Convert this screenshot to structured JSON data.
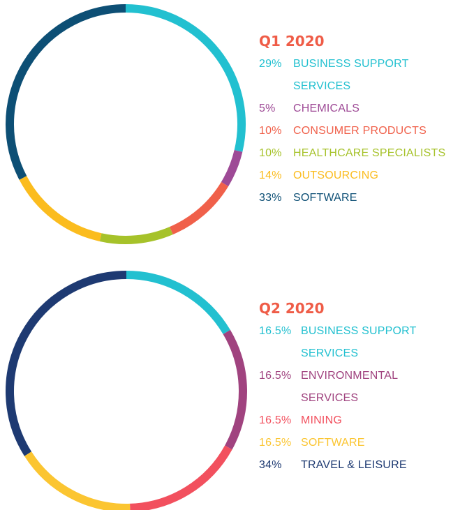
{
  "chart_data": [
    {
      "type": "pie",
      "title": "Q1 2020",
      "categories": [
        "BUSINESS SUPPORT SERVICES",
        "CHEMICALS",
        "CONSUMER PRODUCTS",
        "HEALTHCARE SPECIALISTS",
        "OUTSOURCING",
        "SOFTWARE"
      ],
      "values": [
        29,
        5,
        10,
        10,
        14,
        33
      ],
      "value_labels": [
        "29%",
        "5%",
        "10%",
        "10%",
        "14%",
        "33%"
      ],
      "colors": [
        "#22c0d0",
        "#9e4a96",
        "#f0604a",
        "#a6c22a",
        "#fbbc1e",
        "#0d4f75"
      ]
    },
    {
      "type": "pie",
      "title": "Q2 2020",
      "categories": [
        "BUSINESS SUPPORT SERVICES",
        "ENVIRONMENTAL SERVICES",
        "MINING",
        "SOFTWARE",
        "TRAVEL & LEISURE"
      ],
      "values": [
        16.5,
        16.5,
        16.5,
        16.5,
        34
      ],
      "value_labels": [
        "16.5%",
        "16.5%",
        "16.5%",
        "16.5%",
        "34%"
      ],
      "colors": [
        "#22c0d0",
        "#a0437f",
        "#f2505e",
        "#fbc531",
        "#1e3a72"
      ]
    }
  ]
}
